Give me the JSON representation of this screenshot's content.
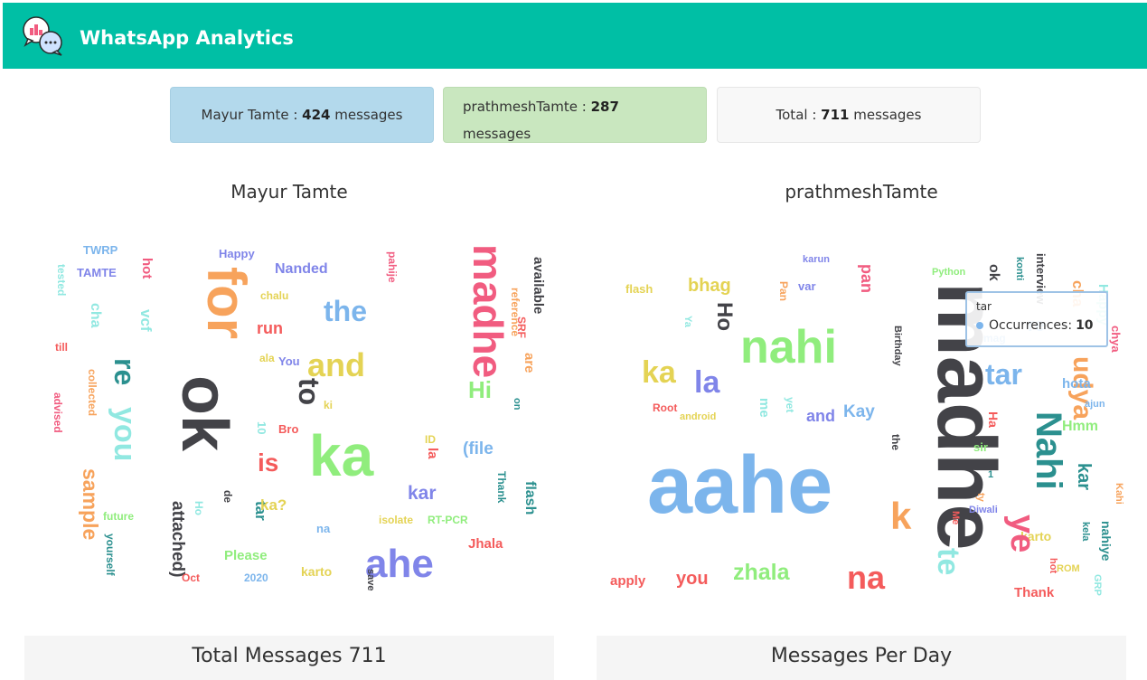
{
  "header": {
    "title": "WhatsApp Analytics",
    "logo_icon": "chat-analytics-icon"
  },
  "summary": {
    "user1": {
      "name": "Mayur Tamte",
      "count": "424",
      "suffix": "messages"
    },
    "user2": {
      "name": "prathmeshTamte",
      "count": "287",
      "suffix": "messages"
    },
    "total": {
      "label": "Total",
      "count": "711",
      "suffix": "messages"
    }
  },
  "wordclouds": {
    "left_title": "Mayur Tamte",
    "right_title": "prathmeshTamte",
    "left_words": [
      "TWRP",
      "Happy",
      "TAMTE",
      "hot",
      "tested",
      "Nanded",
      "pahije",
      "available",
      "chalu",
      "for",
      "madhe",
      "the",
      "cha",
      "vcf",
      "run",
      "reference",
      "till",
      "re",
      "ala",
      "You",
      "and",
      "SRF",
      "are",
      "ok",
      "to",
      "Hi",
      "collected",
      "advised",
      "you",
      "ki",
      "on",
      "10",
      "Bro",
      "ka",
      "is",
      "ID",
      "la",
      "(file",
      "sample",
      "attached)",
      "Thank",
      "flash",
      "kar",
      "future",
      "de",
      "tar",
      "ka?",
      "Ho",
      "isolate",
      "RT-PCR",
      "yourself",
      "na",
      "Please",
      "Jhala",
      "karto",
      "ahe",
      "Oct",
      "2020",
      "save"
    ],
    "right_words": [
      "karun",
      "Python",
      "flash",
      "bhag",
      "Pan",
      "var",
      "pan",
      "interview",
      "konti",
      "Ho",
      "ok",
      "cha",
      "madhe",
      "Birthday",
      "Ya",
      "nahi",
      "mag",
      "re",
      "Happy",
      "chya",
      "ka",
      "la",
      "tar",
      "udya",
      "hota",
      "ajun",
      "Root",
      "android",
      "me",
      "yet",
      "and",
      "Kay",
      "the",
      "Ha",
      "Nahi",
      "Hmm",
      "sir",
      "1",
      "aahe",
      "ty",
      "k",
      "kar",
      "Kahi",
      "Me",
      "Diwali",
      "karto",
      "kela",
      "nahiye",
      "zhala",
      "te",
      "ye",
      "hot",
      "ROM",
      "GRP",
      "apply",
      "you",
      "na",
      "Thank"
    ]
  },
  "tooltip": {
    "word": "tar",
    "series_label": "Occurrences:",
    "value": "10"
  },
  "sections": {
    "left": "Total Messages 711",
    "right": "Messages Per Day"
  },
  "colors": {
    "header": "#00bfa5",
    "palette": [
      "#f45b5b",
      "#7cb5ec",
      "#434348",
      "#90ed7d",
      "#f7a35c",
      "#8085e9",
      "#f15c80",
      "#e4d354",
      "#2b908f",
      "#91e8e1"
    ]
  }
}
